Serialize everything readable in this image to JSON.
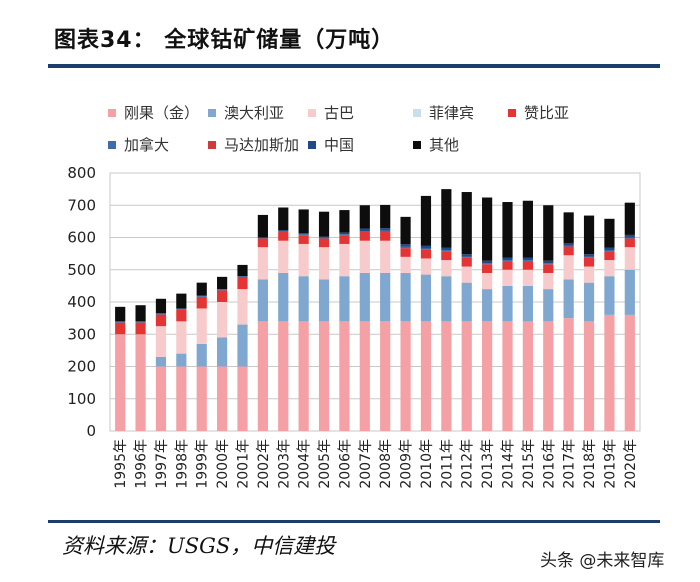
{
  "figure": {
    "title": "图表34：  全球钴矿储量（万吨）",
    "source": "资料来源：USGS，中信建投",
    "watermark": "头条 @未来智库"
  },
  "colors": {
    "congo": "#f4a0a4",
    "australia": "#7fa7cf",
    "cuba": "#f7cbcc",
    "philippines": "#c8e0ee",
    "zambia": "#e43434",
    "canada": "#3e6ea6",
    "madagascar": "#d13a3a",
    "china": "#1f4a8a",
    "other": "#0d0d0d",
    "rule": "#1c3d6b",
    "grid": "#c8c8c8"
  },
  "chart_data": {
    "type": "bar",
    "stacked": true,
    "title": "全球钴矿储量（万吨）",
    "xlabel": "",
    "ylabel": "",
    "ylim": [
      0,
      800
    ],
    "yticks": [
      0,
      100,
      200,
      300,
      400,
      500,
      600,
      700,
      800
    ],
    "grid": true,
    "legend_position": "top",
    "categories": [
      "1995年",
      "1996年",
      "1997年",
      "1998年",
      "1999年",
      "2000年",
      "2001年",
      "2002年",
      "2003年",
      "2004年",
      "2005年",
      "2006年",
      "2007年",
      "2008年",
      "2009年",
      "2010年",
      "2011年",
      "2012年",
      "2013年",
      "2014年",
      "2015年",
      "2016年",
      "2017年",
      "2018年",
      "2019年",
      "2020年"
    ],
    "series": [
      {
        "name": "刚果（金）",
        "color_key": "congo",
        "values": [
          300,
          300,
          200,
          200,
          200,
          200,
          200,
          340,
          340,
          340,
          340,
          340,
          340,
          340,
          340,
          340,
          340,
          340,
          340,
          340,
          340,
          340,
          350,
          340,
          360,
          360
        ]
      },
      {
        "name": "澳大利亚",
        "color_key": "australia",
        "values": [
          0,
          0,
          30,
          40,
          70,
          90,
          130,
          130,
          150,
          140,
          130,
          140,
          150,
          150,
          150,
          145,
          140,
          120,
          100,
          110,
          110,
          100,
          120,
          120,
          120,
          140
        ]
      },
      {
        "name": "古巴",
        "color_key": "cuba",
        "values": [
          0,
          0,
          95,
          100,
          110,
          110,
          110,
          100,
          100,
          100,
          100,
          100,
          100,
          100,
          50,
          50,
          50,
          50,
          50,
          50,
          50,
          50,
          75,
          50,
          50,
          70
        ]
      },
      {
        "name": "菲律宾",
        "color_key": "philippines",
        "values": [
          0,
          0,
          0,
          0,
          0,
          0,
          0,
          0,
          0,
          0,
          0,
          0,
          0,
          0,
          0,
          0,
          0,
          0,
          0,
          0,
          0,
          0,
          0,
          0,
          0,
          0
        ]
      },
      {
        "name": "赞比亚",
        "color_key": "zambia",
        "values": [
          36,
          36,
          36,
          36,
          36,
          36,
          36,
          27,
          27,
          27,
          27,
          27,
          27,
          27,
          27,
          27,
          27,
          27,
          27,
          27,
          27,
          27,
          27,
          27,
          27,
          27
        ]
      },
      {
        "name": "加拿大",
        "color_key": "canada",
        "values": [
          4,
          4,
          4,
          4,
          4,
          4,
          4,
          3,
          3,
          3,
          3,
          3,
          3,
          4,
          4,
          4,
          4,
          3,
          3,
          3,
          3,
          3,
          3,
          3,
          3,
          3
        ]
      },
      {
        "name": "马达加斯加",
        "color_key": "madagascar",
        "values": [
          0,
          0,
          0,
          0,
          0,
          0,
          0,
          0,
          0,
          0,
          0,
          0,
          0,
          0,
          0,
          0,
          0,
          0,
          0,
          0,
          0,
          0,
          0,
          0,
          0,
          0
        ]
      },
      {
        "name": "中国",
        "color_key": "china",
        "values": [
          0,
          0,
          0,
          0,
          0,
          0,
          0,
          0,
          3,
          3,
          3,
          5,
          8,
          8,
          8,
          8,
          8,
          8,
          8,
          8,
          8,
          8,
          8,
          8,
          8,
          8
        ]
      },
      {
        "name": "其他",
        "color_key": "other",
        "values": [
          45,
          50,
          45,
          46,
          40,
          38,
          35,
          70,
          70,
          74,
          77,
          70,
          72,
          72,
          85,
          155,
          181,
          193,
          196,
          172,
          176,
          172,
          95,
          120,
          90,
          100
        ]
      }
    ]
  }
}
